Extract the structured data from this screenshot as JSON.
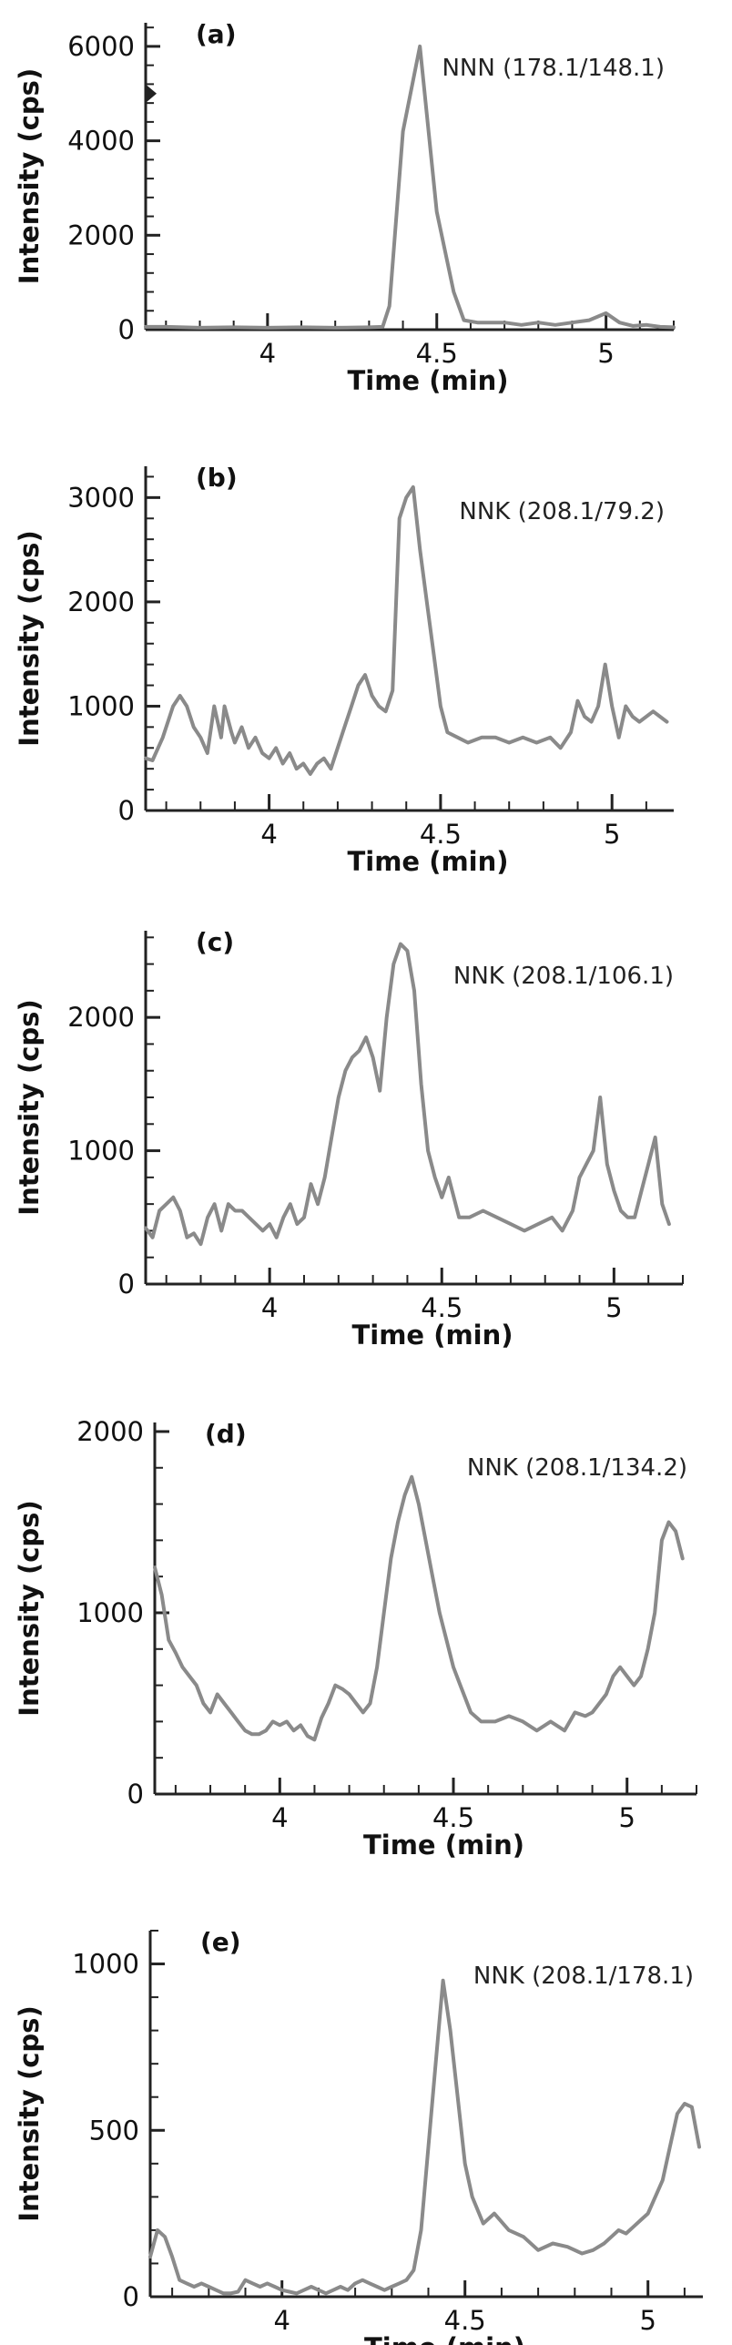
{
  "chart_data": [
    {
      "type": "line",
      "panel": "(a)",
      "title": "NNN (178.1/148.1)",
      "xlabel": "Time (min)",
      "ylabel": "Intensity (cps)",
      "xlim": [
        3.64,
        5.2
      ],
      "ylim": [
        0,
        6500
      ],
      "xticks": [
        4,
        4.5,
        5
      ],
      "xticklabels": [
        "4",
        "4.5",
        "5"
      ],
      "yticks": [
        0,
        2000,
        4000,
        6000
      ],
      "yticklabels": [
        "0",
        "2000",
        "4000",
        "6000"
      ],
      "marker_value": 5000,
      "x": [
        3.64,
        3.7,
        3.8,
        3.9,
        4.0,
        4.1,
        4.2,
        4.3,
        4.34,
        4.36,
        4.4,
        4.45,
        4.5,
        4.55,
        4.58,
        4.62,
        4.7,
        4.75,
        4.8,
        4.85,
        4.9,
        4.95,
        5.0,
        5.04,
        5.08,
        5.12,
        5.16,
        5.2
      ],
      "y": [
        60,
        60,
        40,
        50,
        40,
        50,
        40,
        50,
        60,
        500,
        4200,
        6000,
        2500,
        800,
        200,
        150,
        150,
        100,
        150,
        100,
        150,
        200,
        350,
        150,
        80,
        100,
        60,
        50
      ]
    },
    {
      "type": "line",
      "panel": "(b)",
      "title": "NNK (208.1/79.2)",
      "xlabel": "Time (min)",
      "ylabel": "Intensity (cps)",
      "xlim": [
        3.64,
        5.18
      ],
      "ylim": [
        0,
        3300
      ],
      "xticks": [
        4,
        4.5,
        5
      ],
      "xticklabels": [
        "4",
        "4.5",
        "5"
      ],
      "yticks": [
        0,
        1000,
        2000,
        3000
      ],
      "yticklabels": [
        "0",
        "1000",
        "2000",
        "3000"
      ],
      "x": [
        3.64,
        3.66,
        3.69,
        3.72,
        3.74,
        3.76,
        3.78,
        3.8,
        3.82,
        3.84,
        3.86,
        3.87,
        3.89,
        3.9,
        3.92,
        3.94,
        3.96,
        3.98,
        4.0,
        4.02,
        4.04,
        4.06,
        4.08,
        4.1,
        4.12,
        4.14,
        4.16,
        4.18,
        4.2,
        4.22,
        4.24,
        4.26,
        4.28,
        4.3,
        4.32,
        4.34,
        4.36,
        4.38,
        4.4,
        4.42,
        4.44,
        4.46,
        4.48,
        4.5,
        4.52,
        4.55,
        4.58,
        4.62,
        4.66,
        4.7,
        4.74,
        4.78,
        4.82,
        4.85,
        4.88,
        4.9,
        4.92,
        4.94,
        4.96,
        4.98,
        5.0,
        5.02,
        5.04,
        5.06,
        5.08,
        5.1,
        5.12,
        5.14,
        5.16
      ],
      "y": [
        500,
        480,
        700,
        1000,
        1100,
        1000,
        800,
        700,
        550,
        1000,
        700,
        1000,
        750,
        650,
        800,
        600,
        700,
        550,
        500,
        600,
        450,
        550,
        400,
        450,
        350,
        450,
        500,
        400,
        600,
        800,
        1000,
        1200,
        1300,
        1100,
        1000,
        950,
        1150,
        2800,
        3000,
        3100,
        2500,
        2000,
        1500,
        1000,
        750,
        700,
        650,
        700,
        700,
        650,
        700,
        650,
        700,
        600,
        750,
        1050,
        900,
        850,
        1000,
        1400,
        1000,
        700,
        1000,
        900,
        850,
        900,
        950,
        900,
        850
      ]
    },
    {
      "type": "line",
      "panel": "(c)",
      "title": "NNK (208.1/106.1)",
      "xlabel": "Time (min)",
      "ylabel": "Intensity (cps)",
      "xlim": [
        3.64,
        5.2
      ],
      "ylim": [
        0,
        2650
      ],
      "xticks": [
        4,
        4.5,
        5
      ],
      "xticklabels": [
        "4",
        "4.5",
        "5"
      ],
      "yticks": [
        0,
        1000,
        2000
      ],
      "yticklabels": [
        "0",
        "1000",
        "2000"
      ],
      "x": [
        3.64,
        3.66,
        3.68,
        3.7,
        3.72,
        3.74,
        3.76,
        3.78,
        3.8,
        3.82,
        3.84,
        3.86,
        3.88,
        3.9,
        3.92,
        3.94,
        3.96,
        3.98,
        4.0,
        4.02,
        4.04,
        4.06,
        4.08,
        4.1,
        4.12,
        4.14,
        4.16,
        4.18,
        4.2,
        4.22,
        4.24,
        4.26,
        4.28,
        4.3,
        4.32,
        4.34,
        4.36,
        4.38,
        4.4,
        4.42,
        4.44,
        4.46,
        4.48,
        4.5,
        4.52,
        4.55,
        4.58,
        4.62,
        4.66,
        4.7,
        4.74,
        4.78,
        4.82,
        4.85,
        4.88,
        4.9,
        4.92,
        4.94,
        4.96,
        4.98,
        5.0,
        5.02,
        5.04,
        5.06,
        5.08,
        5.1,
        5.12,
        5.14,
        5.16
      ],
      "y": [
        420,
        350,
        550,
        600,
        650,
        550,
        350,
        380,
        300,
        500,
        600,
        400,
        600,
        550,
        550,
        500,
        450,
        400,
        450,
        350,
        500,
        600,
        450,
        500,
        750,
        600,
        800,
        1100,
        1400,
        1600,
        1700,
        1750,
        1850,
        1700,
        1450,
        2000,
        2400,
        2550,
        2500,
        2200,
        1500,
        1000,
        800,
        650,
        800,
        500,
        500,
        550,
        500,
        450,
        400,
        450,
        500,
        400,
        550,
        800,
        900,
        1000,
        1400,
        900,
        700,
        550,
        500,
        500,
        700,
        900,
        1100,
        600,
        450
      ]
    },
    {
      "type": "line",
      "panel": "(d)",
      "title": "NNK (208.1/134.2)",
      "xlabel": "Time (min)",
      "ylabel": "Intensity (cps)",
      "xlim": [
        3.64,
        5.2
      ],
      "ylim": [
        0,
        2050
      ],
      "xticks": [
        4,
        4.5,
        5
      ],
      "xticklabels": [
        "4",
        "4.5",
        "5"
      ],
      "yticks": [
        0,
        1000,
        2000
      ],
      "yticklabels": [
        "0",
        "1000",
        "2000"
      ],
      "x": [
        3.64,
        3.66,
        3.68,
        3.7,
        3.72,
        3.74,
        3.76,
        3.78,
        3.8,
        3.82,
        3.84,
        3.86,
        3.88,
        3.9,
        3.92,
        3.94,
        3.96,
        3.98,
        4.0,
        4.02,
        4.04,
        4.06,
        4.08,
        4.1,
        4.12,
        4.14,
        4.16,
        4.18,
        4.2,
        4.22,
        4.24,
        4.26,
        4.28,
        4.3,
        4.32,
        4.34,
        4.36,
        4.38,
        4.4,
        4.42,
        4.44,
        4.46,
        4.48,
        4.5,
        4.52,
        4.55,
        4.58,
        4.62,
        4.66,
        4.7,
        4.74,
        4.78,
        4.82,
        4.85,
        4.88,
        4.9,
        4.92,
        4.94,
        4.96,
        4.98,
        5.0,
        5.02,
        5.04,
        5.06,
        5.08,
        5.1,
        5.12,
        5.14,
        5.16
      ],
      "y": [
        1250,
        1100,
        850,
        780,
        700,
        650,
        600,
        500,
        450,
        550,
        500,
        450,
        400,
        350,
        330,
        330,
        350,
        400,
        380,
        400,
        350,
        380,
        320,
        300,
        420,
        500,
        600,
        580,
        550,
        500,
        450,
        500,
        700,
        1000,
        1300,
        1500,
        1650,
        1750,
        1600,
        1400,
        1200,
        1000,
        850,
        700,
        600,
        450,
        400,
        400,
        430,
        400,
        350,
        400,
        350,
        450,
        430,
        450,
        500,
        550,
        650,
        700,
        650,
        600,
        650,
        800,
        1000,
        1400,
        1500,
        1450,
        1300
      ]
    },
    {
      "type": "line",
      "panel": "(e)",
      "title": "NNK (208.1/178.1)",
      "xlabel": "Time (min)",
      "ylabel": "Intensity (cps)",
      "xlim": [
        3.64,
        5.15
      ],
      "ylim": [
        0,
        1100
      ],
      "xticks": [
        4,
        4.5,
        5
      ],
      "xticklabels": [
        "4",
        "4.5",
        "5"
      ],
      "yticks": [
        0,
        500,
        1000
      ],
      "yticklabels": [
        "0",
        "500",
        "1000"
      ],
      "x": [
        3.64,
        3.66,
        3.68,
        3.7,
        3.72,
        3.74,
        3.76,
        3.78,
        3.8,
        3.82,
        3.84,
        3.86,
        3.88,
        3.9,
        3.92,
        3.94,
        3.96,
        3.98,
        4.0,
        4.02,
        4.04,
        4.06,
        4.08,
        4.1,
        4.12,
        4.14,
        4.16,
        4.18,
        4.2,
        4.22,
        4.24,
        4.26,
        4.28,
        4.3,
        4.32,
        4.34,
        4.36,
        4.38,
        4.4,
        4.42,
        4.44,
        4.46,
        4.48,
        4.5,
        4.52,
        4.55,
        4.58,
        4.62,
        4.66,
        4.7,
        4.74,
        4.78,
        4.82,
        4.85,
        4.88,
        4.9,
        4.92,
        4.94,
        4.96,
        4.98,
        5.0,
        5.02,
        5.04,
        5.06,
        5.08,
        5.1,
        5.12,
        5.14
      ],
      "y": [
        120,
        200,
        180,
        120,
        50,
        40,
        30,
        40,
        30,
        20,
        10,
        10,
        15,
        50,
        40,
        30,
        40,
        30,
        20,
        15,
        10,
        20,
        30,
        20,
        10,
        20,
        30,
        20,
        40,
        50,
        40,
        30,
        20,
        30,
        40,
        50,
        80,
        200,
        450,
        700,
        950,
        800,
        600,
        400,
        300,
        220,
        250,
        200,
        180,
        140,
        160,
        150,
        130,
        140,
        160,
        180,
        200,
        190,
        210,
        230,
        250,
        300,
        350,
        450,
        550,
        580,
        570,
        450
      ]
    }
  ]
}
